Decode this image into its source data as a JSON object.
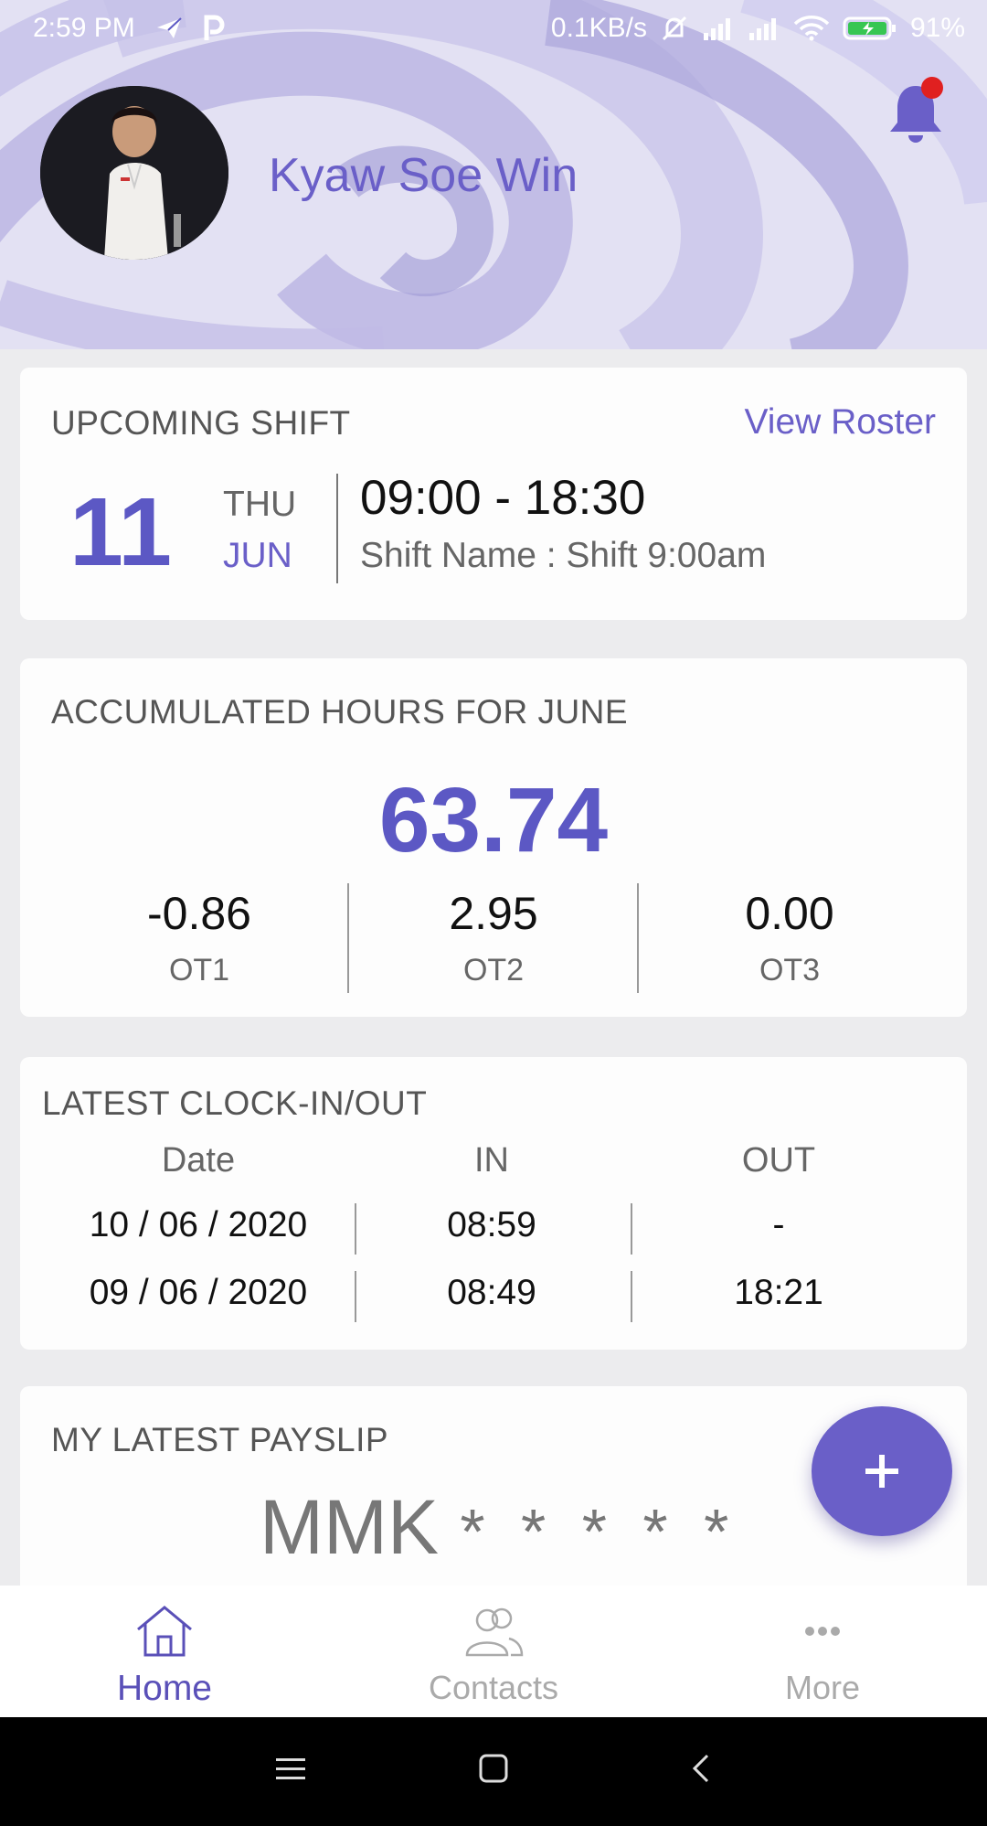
{
  "status_bar": {
    "time": "2:59 PM",
    "network_speed": "0.1KB/s",
    "battery_percent": "91%",
    "icons": [
      "paper-plane-icon",
      "p-icon",
      "alarm-off-icon",
      "signal-icon",
      "signal-icon",
      "wifi-icon",
      "battery-charging-icon"
    ]
  },
  "profile": {
    "name": "Kyaw Soe Win",
    "has_notification": true
  },
  "upcoming_shift": {
    "title": "UPCOMING SHIFT",
    "action": "View Roster",
    "day": "11",
    "weekday": "THU",
    "month": "JUN",
    "time_range": "09:00 - 18:30",
    "shift_name": "Shift Name : Shift 9:00am"
  },
  "accumulated_hours": {
    "title": "ACCUMULATED HOURS FOR JUNE",
    "total": "63.74",
    "overtime": [
      {
        "value": "-0.86",
        "label": "OT1"
      },
      {
        "value": "2.95",
        "label": "OT2"
      },
      {
        "value": "0.00",
        "label": "OT3"
      }
    ]
  },
  "clock_in_out": {
    "title": "LATEST CLOCK-IN/OUT",
    "headers": [
      "Date",
      "IN",
      "OUT"
    ],
    "rows": [
      [
        "10 / 06 / 2020",
        "08:59",
        "-"
      ],
      [
        "09 / 06 / 2020",
        "08:49",
        "18:21"
      ]
    ]
  },
  "payslip": {
    "title": "MY LATEST PAYSLIP",
    "currency": "MMK",
    "masked_amount": "* * * * *"
  },
  "fab": {
    "icon": "plus-icon"
  },
  "bottom_nav": {
    "items": [
      {
        "label": "Home",
        "icon": "home-icon",
        "active": true
      },
      {
        "label": "Contacts",
        "icon": "contacts-icon",
        "active": false
      },
      {
        "label": "More",
        "icon": "more-icon",
        "active": false
      }
    ]
  },
  "colors": {
    "accent": "#6a5fc8",
    "accent_dark": "#5c58c4",
    "notification_dot": "#e02020"
  }
}
